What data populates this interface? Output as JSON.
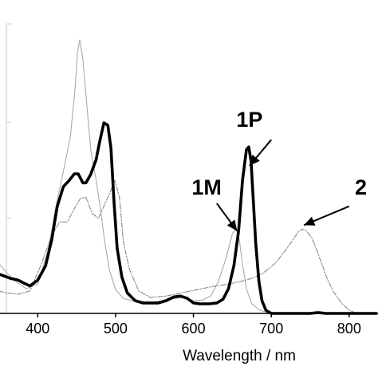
{
  "chart_data": {
    "type": "line",
    "title": "",
    "xlabel": "Wavelength / nm",
    "ylabel": "",
    "xlim": [
      350,
      835
    ],
    "ylim": [
      0,
      1.0
    ],
    "x_ticks": [
      400,
      500,
      600,
      700,
      800
    ],
    "y_ticks_unlabeled": [
      0.33,
      0.66,
      1.0
    ],
    "grid": false,
    "legend": "none",
    "series": [
      {
        "style": "thick-solid",
        "color": "#000000",
        "points": [
          [
            350,
            0.136
          ],
          [
            365,
            0.121
          ],
          [
            375,
            0.115
          ],
          [
            382,
            0.105
          ],
          [
            390,
            0.095
          ],
          [
            400,
            0.115
          ],
          [
            410,
            0.164
          ],
          [
            418,
            0.255
          ],
          [
            425,
            0.369
          ],
          [
            433,
            0.438
          ],
          [
            440,
            0.458
          ],
          [
            447,
            0.482
          ],
          [
            452,
            0.482
          ],
          [
            458,
            0.451
          ],
          [
            462,
            0.451
          ],
          [
            468,
            0.48
          ],
          [
            475,
            0.531
          ],
          [
            480,
            0.598
          ],
          [
            485,
            0.658
          ],
          [
            490,
            0.65
          ],
          [
            494,
            0.572
          ],
          [
            498,
            0.384
          ],
          [
            502,
            0.225
          ],
          [
            508,
            0.126
          ],
          [
            515,
            0.071
          ],
          [
            525,
            0.044
          ],
          [
            535,
            0.036
          ],
          [
            545,
            0.036
          ],
          [
            555,
            0.036
          ],
          [
            565,
            0.044
          ],
          [
            575,
            0.057
          ],
          [
            583,
            0.06
          ],
          [
            592,
            0.052
          ],
          [
            600,
            0.036
          ],
          [
            608,
            0.033
          ],
          [
            620,
            0.033
          ],
          [
            630,
            0.036
          ],
          [
            638,
            0.049
          ],
          [
            645,
            0.085
          ],
          [
            652,
            0.165
          ],
          [
            658,
            0.285
          ],
          [
            663,
            0.46
          ],
          [
            668,
            0.565
          ],
          [
            671,
            0.575
          ],
          [
            674,
            0.527
          ],
          [
            677,
            0.387
          ],
          [
            680,
            0.242
          ],
          [
            684,
            0.112
          ],
          [
            688,
            0.044
          ],
          [
            693,
            0.011
          ],
          [
            700,
            0.0
          ],
          [
            750,
            0.0
          ],
          [
            760,
            0.003
          ],
          [
            770,
            0.0
          ],
          [
            835,
            0.0
          ]
        ]
      },
      {
        "style": "thin-solid",
        "color": "#aaaaaa",
        "points": [
          [
            350,
            0.173
          ],
          [
            360,
            0.14
          ],
          [
            372,
            0.11
          ],
          [
            385,
            0.085
          ],
          [
            400,
            0.101
          ],
          [
            413,
            0.215
          ],
          [
            425,
            0.39
          ],
          [
            435,
            0.518
          ],
          [
            442,
            0.612
          ],
          [
            448,
            0.779
          ],
          [
            451,
            0.899
          ],
          [
            454,
            0.945
          ],
          [
            458,
            0.88
          ],
          [
            462,
            0.755
          ],
          [
            468,
            0.568
          ],
          [
            475,
            0.461
          ],
          [
            481,
            0.351
          ],
          [
            486,
            0.247
          ],
          [
            492,
            0.151
          ],
          [
            500,
            0.082
          ],
          [
            510,
            0.052
          ],
          [
            525,
            0.041
          ],
          [
            545,
            0.038
          ],
          [
            565,
            0.046
          ],
          [
            585,
            0.055
          ],
          [
            600,
            0.044
          ],
          [
            612,
            0.046
          ],
          [
            622,
            0.06
          ],
          [
            632,
            0.11
          ],
          [
            642,
            0.192
          ],
          [
            650,
            0.275
          ],
          [
            655,
            0.296
          ],
          [
            659,
            0.253
          ],
          [
            663,
            0.17
          ],
          [
            668,
            0.085
          ],
          [
            675,
            0.033
          ],
          [
            685,
            0.011
          ],
          [
            700,
            0.0
          ],
          [
            835,
            0.0
          ]
        ]
      },
      {
        "style": "dash-dot",
        "color": "#888888",
        "points": [
          [
            350,
            0.077
          ],
          [
            360,
            0.071
          ],
          [
            375,
            0.066
          ],
          [
            390,
            0.077
          ],
          [
            405,
            0.173
          ],
          [
            418,
            0.269
          ],
          [
            428,
            0.316
          ],
          [
            438,
            0.316
          ],
          [
            447,
            0.362
          ],
          [
            455,
            0.398
          ],
          [
            462,
            0.401
          ],
          [
            470,
            0.345
          ],
          [
            478,
            0.329
          ],
          [
            485,
            0.371
          ],
          [
            492,
            0.412
          ],
          [
            499,
            0.459
          ],
          [
            505,
            0.401
          ],
          [
            510,
            0.247
          ],
          [
            518,
            0.151
          ],
          [
            530,
            0.077
          ],
          [
            545,
            0.055
          ],
          [
            565,
            0.06
          ],
          [
            585,
            0.071
          ],
          [
            605,
            0.082
          ],
          [
            625,
            0.093
          ],
          [
            645,
            0.101
          ],
          [
            660,
            0.11
          ],
          [
            675,
            0.121
          ],
          [
            690,
            0.14
          ],
          [
            705,
            0.173
          ],
          [
            718,
            0.217
          ],
          [
            728,
            0.255
          ],
          [
            735,
            0.283
          ],
          [
            740,
            0.291
          ],
          [
            745,
            0.285
          ],
          [
            752,
            0.261
          ],
          [
            758,
            0.222
          ],
          [
            765,
            0.17
          ],
          [
            772,
            0.118
          ],
          [
            780,
            0.074
          ],
          [
            790,
            0.036
          ],
          [
            800,
            0.011
          ],
          [
            810,
            0.0
          ],
          [
            835,
            0.0
          ]
        ]
      }
    ],
    "annotations": [
      {
        "label": "1P",
        "text_x": 672,
        "text_y": 0.645,
        "arrow_from": [
          700,
          0.6
        ],
        "arrow_to": [
          672,
          0.51
        ]
      },
      {
        "label": "1M",
        "text_x": 617,
        "text_y": 0.41,
        "arrow_from": [
          630,
          0.38
        ],
        "arrow_to": [
          656,
          0.285
        ]
      },
      {
        "label": "2",
        "text_x": 815,
        "text_y": 0.41,
        "arrow_from": [
          800,
          0.37
        ],
        "arrow_to": [
          742,
          0.305
        ]
      }
    ]
  }
}
